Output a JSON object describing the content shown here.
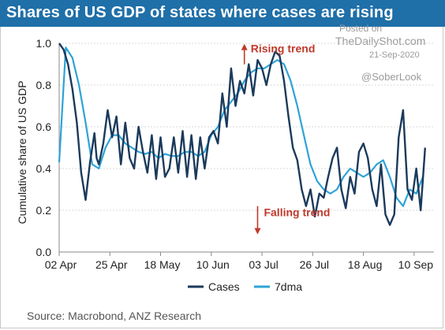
{
  "header": {
    "title": "Shares of US GDP of states where cases are rising"
  },
  "watermark": {
    "posted": "Posted on",
    "site": "TheDailyShot.com",
    "date": "21-Sep-2020",
    "handle": "@SoberLook"
  },
  "footer": {
    "source": "Source:  Macrobond, ANZ Research"
  },
  "colors": {
    "title_bg": "#1f6fa8",
    "cases": "#1b3a5c",
    "dma": "#2ea3d6",
    "annotation": "#c0392b"
  },
  "chart_data": {
    "type": "line",
    "ylabel": "Cumulative share of US GDP",
    "xlabel": "",
    "ylim": [
      0,
      1
    ],
    "yticks": [
      "0.0",
      "0.2",
      "0.4",
      "0.6",
      "0.8",
      "1.0"
    ],
    "xticks": [
      "02 Apr",
      "25 Apr",
      "18 May",
      "10 Jun",
      "03 Jul",
      "26 Jul",
      "18 Aug",
      "10 Sep"
    ],
    "xtick_days": [
      0,
      23,
      46,
      69,
      92,
      115,
      138,
      161
    ],
    "annotations": [
      {
        "text": "Rising trend",
        "day": 84,
        "y": 0.99,
        "arrow": "up"
      },
      {
        "text": "Falling trend",
        "day": 90,
        "y": 0.19,
        "arrow": "down"
      }
    ],
    "legend": "bottom",
    "series": [
      {
        "name": "Cases",
        "x": [
          0,
          2,
          4,
          6,
          8,
          10,
          12,
          14,
          16,
          17,
          18,
          20,
          22,
          24,
          26,
          28,
          30,
          32,
          34,
          36,
          38,
          40,
          42,
          44,
          46,
          48,
          50,
          52,
          54,
          56,
          58,
          60,
          62,
          64,
          66,
          68,
          70,
          72,
          74,
          76,
          78,
          80,
          82,
          84,
          86,
          88,
          90,
          92,
          94,
          96,
          98,
          100,
          102,
          104,
          106,
          108,
          110,
          112,
          114,
          116,
          118,
          120,
          122,
          124,
          126,
          128,
          130,
          132,
          134,
          136,
          138,
          140,
          142,
          144,
          146,
          148,
          150,
          152,
          154,
          156,
          158,
          160,
          162,
          164,
          166
        ],
        "values": [
          1.0,
          0.97,
          0.9,
          0.78,
          0.62,
          0.38,
          0.25,
          0.43,
          0.57,
          0.45,
          0.42,
          0.52,
          0.68,
          0.55,
          0.65,
          0.42,
          0.62,
          0.45,
          0.4,
          0.6,
          0.48,
          0.38,
          0.56,
          0.35,
          0.55,
          0.36,
          0.4,
          0.55,
          0.38,
          0.58,
          0.36,
          0.56,
          0.35,
          0.55,
          0.4,
          0.55,
          0.58,
          0.52,
          0.76,
          0.6,
          0.88,
          0.7,
          0.82,
          0.76,
          0.9,
          0.75,
          0.92,
          0.88,
          0.8,
          0.9,
          0.96,
          0.94,
          0.82,
          0.65,
          0.5,
          0.44,
          0.3,
          0.22,
          0.3,
          0.17,
          0.28,
          0.26,
          0.36,
          0.45,
          0.5,
          0.3,
          0.21,
          0.36,
          0.28,
          0.48,
          0.52,
          0.45,
          0.3,
          0.22,
          0.42,
          0.18,
          0.13,
          0.18,
          0.55,
          0.68,
          0.3,
          0.25,
          0.4,
          0.2,
          0.5
        ],
        "color": "#1b3a5c"
      },
      {
        "name": "7dma",
        "x": [
          0,
          3,
          6,
          9,
          12,
          15,
          18,
          21,
          24,
          27,
          30,
          33,
          36,
          39,
          42,
          45,
          48,
          51,
          54,
          57,
          60,
          63,
          66,
          69,
          72,
          75,
          78,
          81,
          84,
          87,
          90,
          93,
          96,
          99,
          102,
          105,
          108,
          111,
          114,
          117,
          120,
          123,
          126,
          129,
          132,
          135,
          138,
          141,
          144,
          147,
          150,
          153,
          156,
          159,
          162,
          165
        ],
        "values": [
          0.43,
          0.98,
          0.93,
          0.8,
          0.62,
          0.42,
          0.4,
          0.5,
          0.56,
          0.56,
          0.52,
          0.5,
          0.48,
          0.47,
          0.48,
          0.45,
          0.47,
          0.46,
          0.46,
          0.48,
          0.48,
          0.46,
          0.48,
          0.56,
          0.6,
          0.68,
          0.72,
          0.76,
          0.82,
          0.86,
          0.88,
          0.88,
          0.9,
          0.92,
          0.9,
          0.82,
          0.7,
          0.56,
          0.42,
          0.34,
          0.3,
          0.28,
          0.3,
          0.36,
          0.4,
          0.38,
          0.36,
          0.38,
          0.42,
          0.44,
          0.36,
          0.26,
          0.22,
          0.3,
          0.28,
          0.36
        ],
        "color": "#2ea3d6"
      }
    ]
  }
}
